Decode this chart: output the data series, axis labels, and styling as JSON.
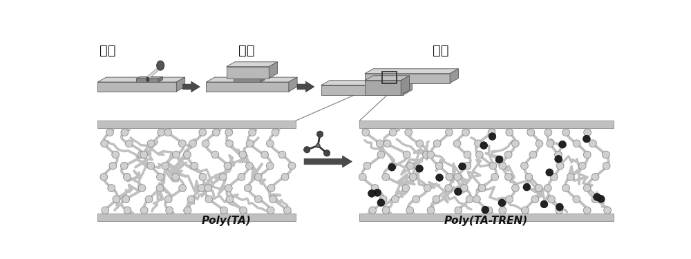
{
  "bg_color": "#ffffff",
  "text_color": "#111111",
  "label_melt": "煽化",
  "label_press": "热压",
  "label_cool": "冷却",
  "label_poly_ta": "Poly(TA)",
  "label_poly_ta_tren": "Poly(TA-TREN)",
  "plate_top_light": "#d8d8d8",
  "plate_front_mid": "#b8b8b8",
  "plate_side_dark": "#989898",
  "adhesive_top": "#a0a0a0",
  "adhesive_front": "#808080",
  "adhesive_side": "#686868",
  "arrow_color": "#4a4a4a",
  "surf_bar_color": "#c0c0c0",
  "chain_line_color": "#c0c0c0",
  "bead_color": "#d0d0d0",
  "bead_edge_color": "#888888",
  "dark_bead_color": "#222222",
  "connector_line_color": "#888888",
  "fig_width": 10.0,
  "fig_height": 3.76
}
